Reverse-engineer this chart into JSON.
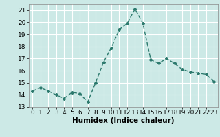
{
  "x": [
    0,
    1,
    2,
    3,
    4,
    5,
    6,
    7,
    8,
    9,
    10,
    11,
    12,
    13,
    14,
    15,
    16,
    17,
    18,
    19,
    20,
    21,
    22,
    23
  ],
  "y": [
    14.3,
    14.6,
    14.3,
    14.0,
    13.7,
    14.2,
    14.1,
    13.4,
    15.0,
    16.7,
    17.9,
    19.4,
    19.9,
    21.1,
    19.9,
    16.9,
    16.6,
    17.0,
    16.6,
    16.1,
    15.9,
    15.8,
    15.7,
    15.1
  ],
  "line_color": "#2d7a6e",
  "marker": "D",
  "marker_size": 2.0,
  "bg_color": "#cce9e6",
  "grid_color": "#ffffff",
  "xlabel": "Humidex (Indice chaleur)",
  "xlim": [
    -0.5,
    23.5
  ],
  "ylim": [
    13,
    21.5
  ],
  "yticks": [
    13,
    14,
    15,
    16,
    17,
    18,
    19,
    20,
    21
  ],
  "xticks": [
    0,
    1,
    2,
    3,
    4,
    5,
    6,
    7,
    8,
    9,
    10,
    11,
    12,
    13,
    14,
    15,
    16,
    17,
    18,
    19,
    20,
    21,
    22,
    23
  ],
  "tick_fontsize": 6.5,
  "label_fontsize": 7.5,
  "linewidth": 1.0
}
